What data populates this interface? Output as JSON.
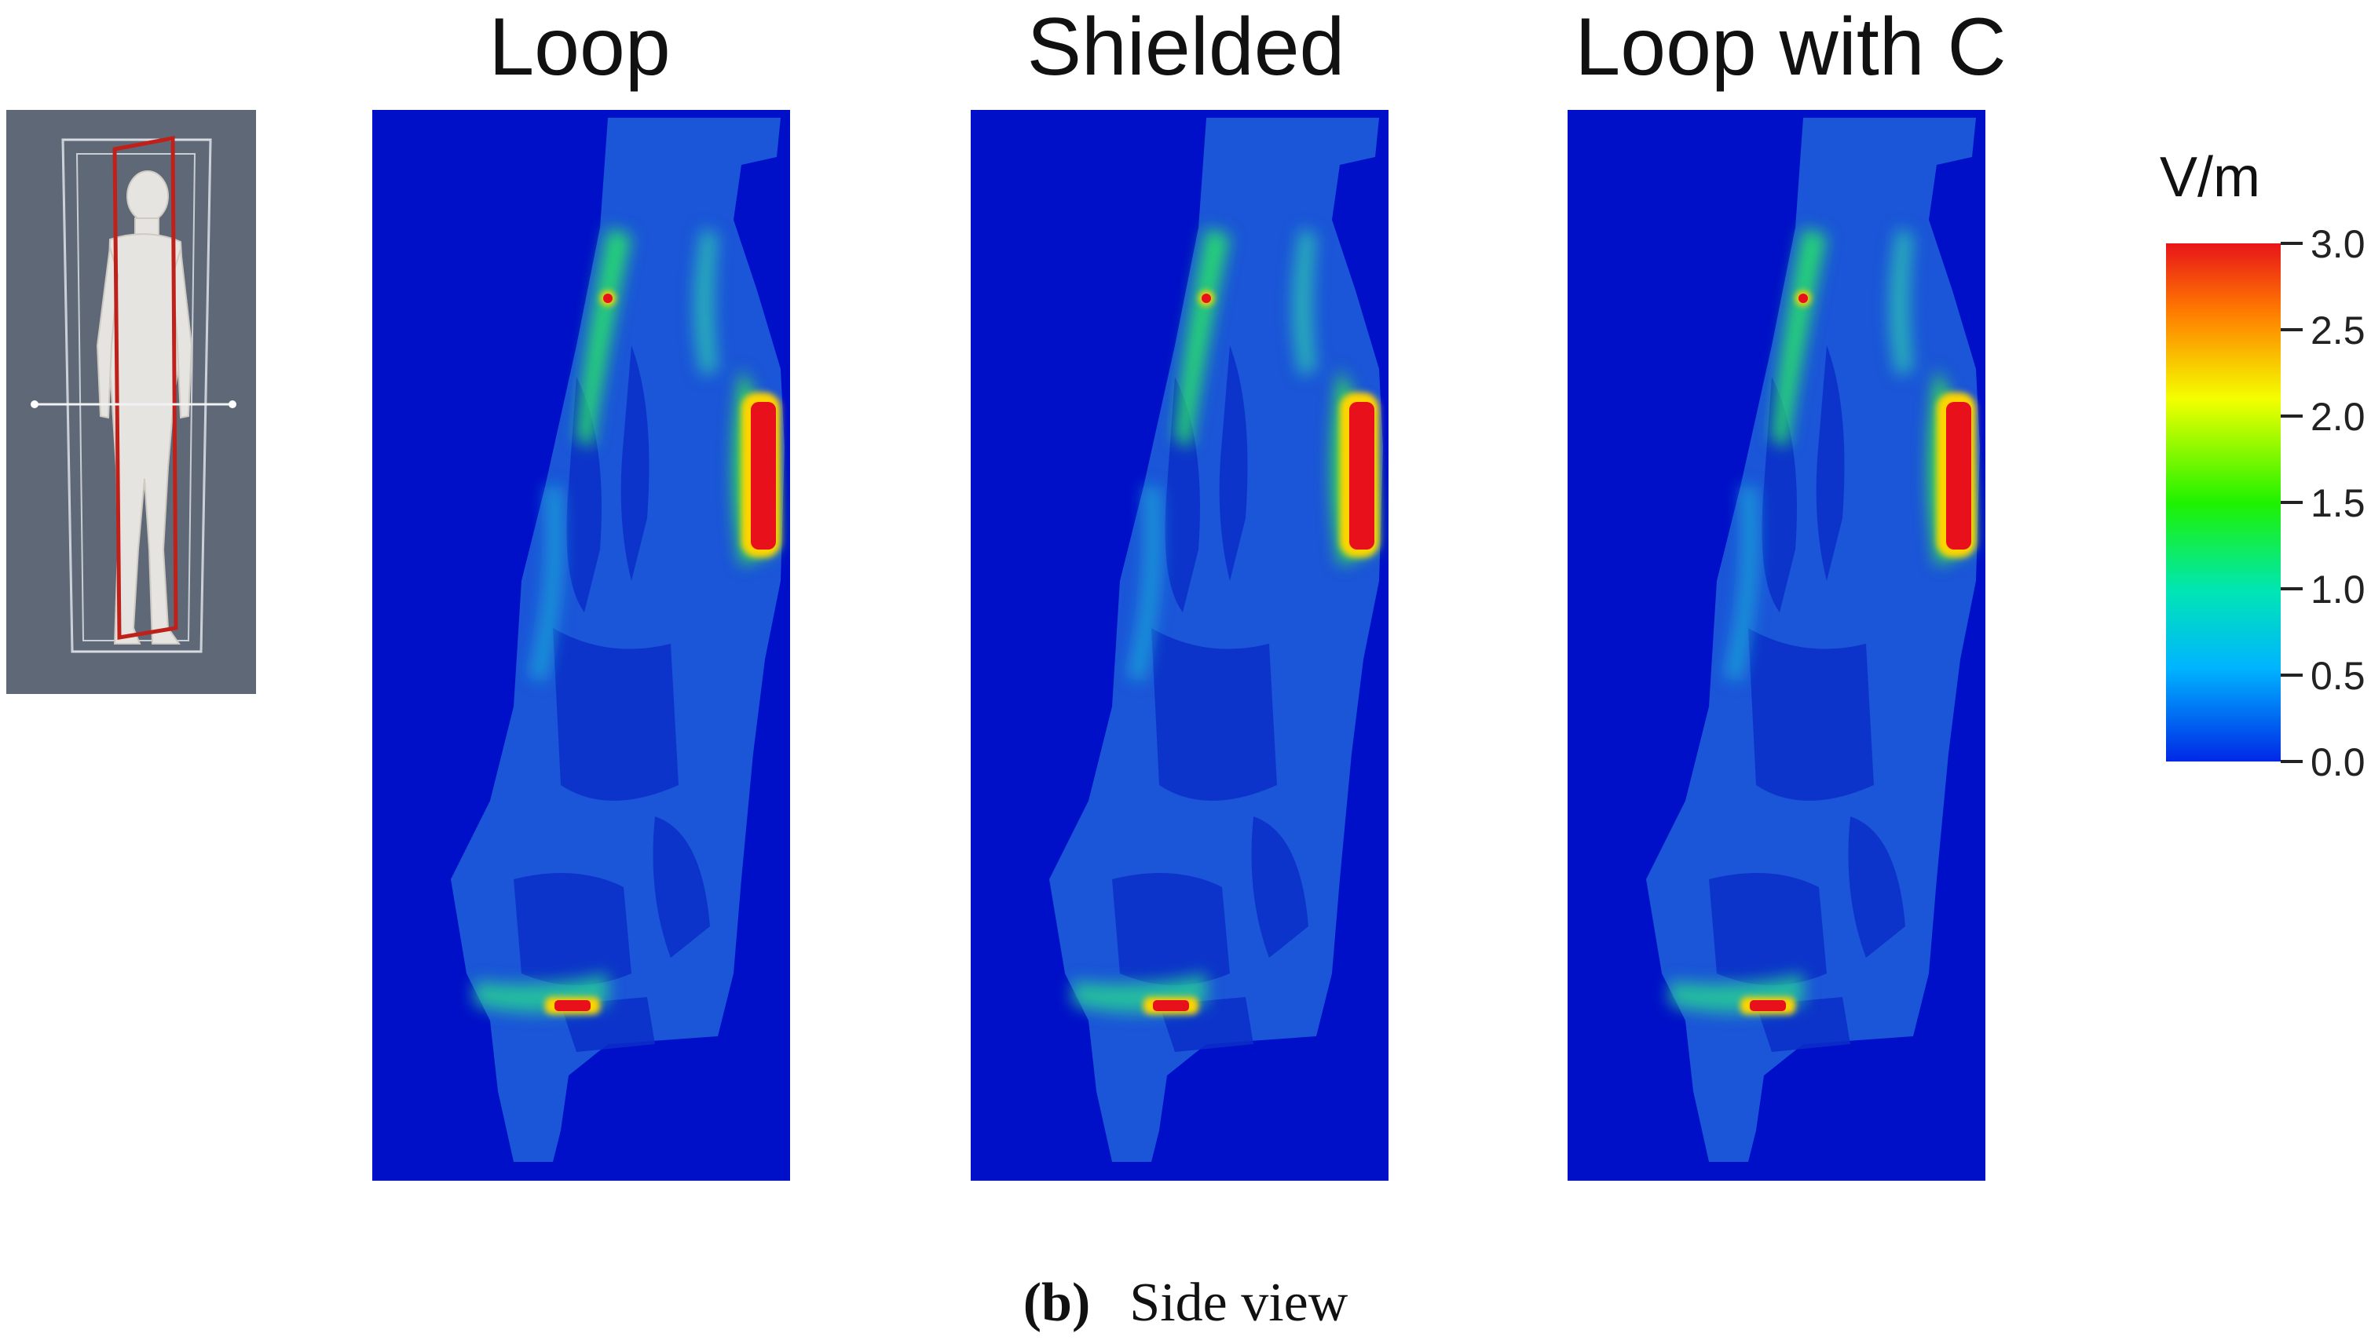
{
  "panels": [
    {
      "title": "Loop"
    },
    {
      "title": "Shielded"
    },
    {
      "title": "Loop with C"
    }
  ],
  "colorbar": {
    "unit": "V/m",
    "ticks": [
      "3.0",
      "2.5",
      "2.0",
      "1.5",
      "1.0",
      "0.5",
      "0.0"
    ],
    "colors": [
      "#ff0000",
      "#ff8800",
      "#ffff00",
      "#00ff00",
      "#00ffaa",
      "#00c8ff",
      "#0000ff"
    ]
  },
  "caption": {
    "tag": "(b)",
    "text": "Side view"
  },
  "inset": {
    "background": "#5f6877"
  }
}
